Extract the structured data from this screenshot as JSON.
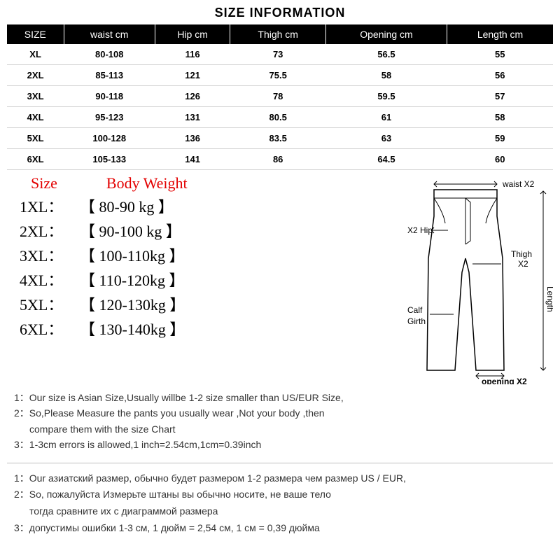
{
  "title": "SIZE INFORMATION",
  "table": {
    "columns": [
      "SIZE",
      "waist cm",
      "Hip cm",
      "Thigh cm",
      "Opening cm",
      "Length cm"
    ],
    "rows": [
      [
        "XL",
        "80-108",
        "116",
        "73",
        "56.5",
        "55"
      ],
      [
        "2XL",
        "85-113",
        "121",
        "75.5",
        "58",
        "56"
      ],
      [
        "3XL",
        "90-118",
        "126",
        "78",
        "59.5",
        "57"
      ],
      [
        "4XL",
        "95-123",
        "131",
        "80.5",
        "61",
        "58"
      ],
      [
        "5XL",
        "100-128",
        "136",
        "83.5",
        "63",
        "59"
      ],
      [
        "6XL",
        "105-133",
        "141",
        "86",
        "64.5",
        "60"
      ]
    ],
    "header_bg": "#000000",
    "header_fg": "#ffffff",
    "row_border": "#d0d0d0"
  },
  "weight": {
    "header_size": "Size",
    "header_weight": "Body Weight",
    "header_color": "#e30000",
    "rows": [
      {
        "size": "1XL：",
        "val": "80-90 kg"
      },
      {
        "size": "2XL：",
        "val": "90-100 kg"
      },
      {
        "size": "3XL：",
        "val": "100-110kg"
      },
      {
        "size": "4XL：",
        "val": "110-120kg"
      },
      {
        "size": "5XL：",
        "val": "120-130kg"
      },
      {
        "size": "6XL：",
        "val": "130-140kg"
      }
    ]
  },
  "diagram": {
    "labels": {
      "waist": "waist X2",
      "hip": "X2 Hip",
      "thigh": "Thigh",
      "thigh2": "X2",
      "length": "Length",
      "calf": "Calf",
      "girth": "Girth",
      "opening": "opening X2"
    },
    "stroke": "#000000",
    "fill": "#ffffff"
  },
  "notes_en": {
    "n1": "1：Our size is Asian Size,Usually willbe 1-2 size smaller than US/EUR Size,",
    "n2": "2：So,Please Measure the pants you usually wear ,Not your body ,then",
    "n2b": "compare them with the size Chart",
    "n3": "3：1-3cm errors is allowed,1 inch=2.54cm,1cm=0.39inch"
  },
  "notes_ru": {
    "n1": "1：Our азиатский размер, обычно будет размером 1-2 размера чем размер US / EUR,",
    "n2": "2：So, пожалуйста Измерьте штаны вы обычно носите, не ваше тело",
    "n2b": "тогда сравните их с диаграммой размера",
    "n3": "3：допустимы ошибки 1-3 см, 1 дюйм = 2,54 см, 1 см = 0,39 дюйма"
  }
}
